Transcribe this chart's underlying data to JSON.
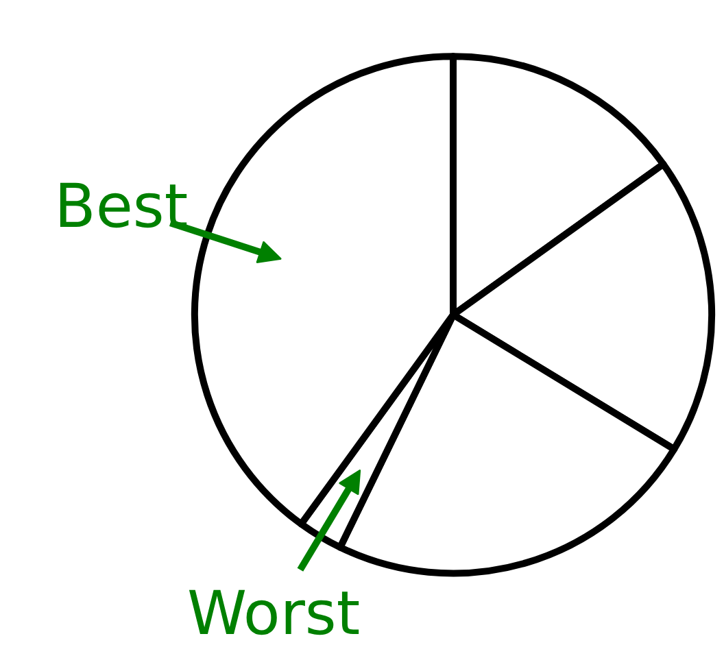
{
  "chart_data": {
    "type": "pie",
    "categories": [
      null,
      null,
      null,
      "Worst",
      "Best"
    ],
    "values": [
      15.1,
      18.6,
      23.5,
      2.8,
      40.0
    ],
    "colors": [
      "#ffffff",
      "#ffffff",
      "#ffffff",
      "#ffffff",
      "#ffffff"
    ]
  }
}
